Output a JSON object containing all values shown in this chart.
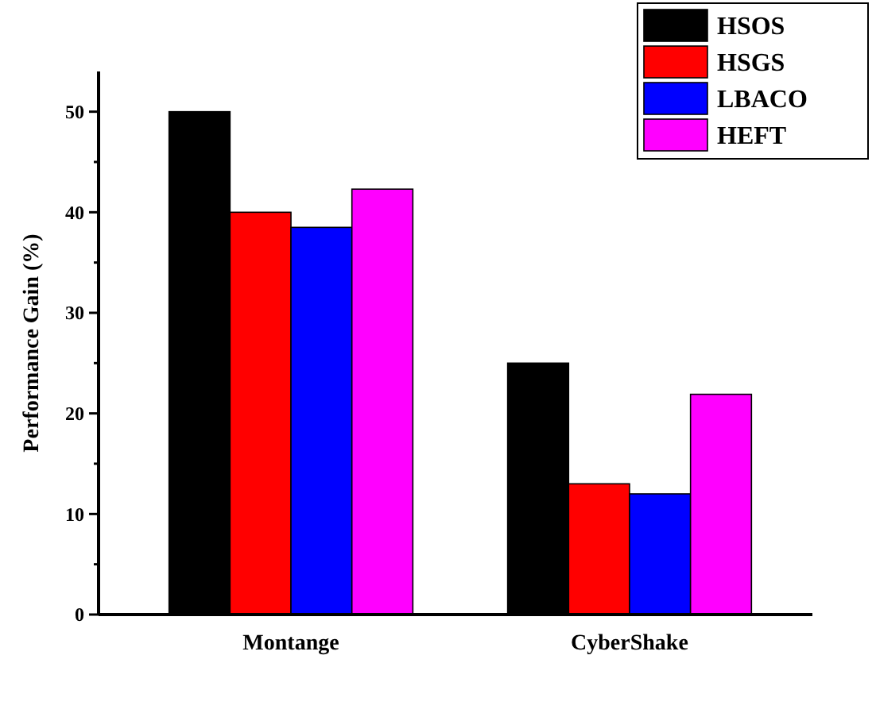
{
  "chart_data": {
    "type": "bar",
    "ylabel": "Performance Gain (%)",
    "categories": [
      "Montange",
      "CyberShake"
    ],
    "series": [
      {
        "name": "HSOS",
        "color": "#000000",
        "values": [
          50,
          25
        ]
      },
      {
        "name": "HSGS",
        "color": "#ff0000",
        "values": [
          40,
          13
        ]
      },
      {
        "name": "LBACO",
        "color": "#0000ff",
        "values": [
          38.5,
          12
        ]
      },
      {
        "name": "HEFT",
        "color": "#ff00ff",
        "values": [
          42.3,
          21.9
        ]
      }
    ],
    "ylim": [
      0,
      54
    ],
    "yticks": [
      0,
      {
        "value": 5,
        "label": null
      },
      10,
      {
        "value": 15,
        "label": null
      },
      20,
      {
        "value": 25,
        "label": null
      },
      30,
      {
        "value": 35,
        "label": null
      },
      40,
      {
        "value": 45,
        "label": null
      },
      50
    ],
    "grid": false,
    "legend": "top right"
  }
}
